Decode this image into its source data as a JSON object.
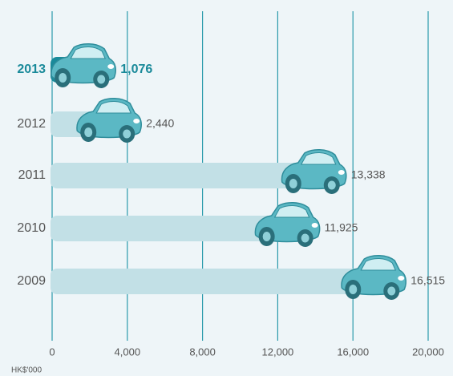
{
  "chart_data": {
    "type": "bar",
    "orientation": "horizontal",
    "categories": [
      "2013",
      "2012",
      "2011",
      "2010",
      "2009"
    ],
    "values": [
      1076,
      2440,
      13338,
      11925,
      16515
    ],
    "value_labels": [
      "1,076",
      "2,440",
      "13,338",
      "11,925",
      "16,515"
    ],
    "colors": [
      "#1a8a9a",
      "#c2e0e6",
      "#c2e0e6",
      "#c2e0e6",
      "#c2e0e6"
    ],
    "highlight_color": "#1a8a9a",
    "grid_color": "#2a9aab",
    "xlim": [
      0,
      20000
    ],
    "xticks": [
      0,
      {
        "value": 4000,
        "label": "4,000"
      },
      {
        "value": 8000,
        "label": "8,000"
      },
      {
        "value": 12000,
        "label": "12,000"
      },
      {
        "value": 16000,
        "label": "16,000"
      },
      {
        "value": 20000,
        "label": "20,000"
      }
    ],
    "x_label": "HK$'000",
    "grid": true
  }
}
